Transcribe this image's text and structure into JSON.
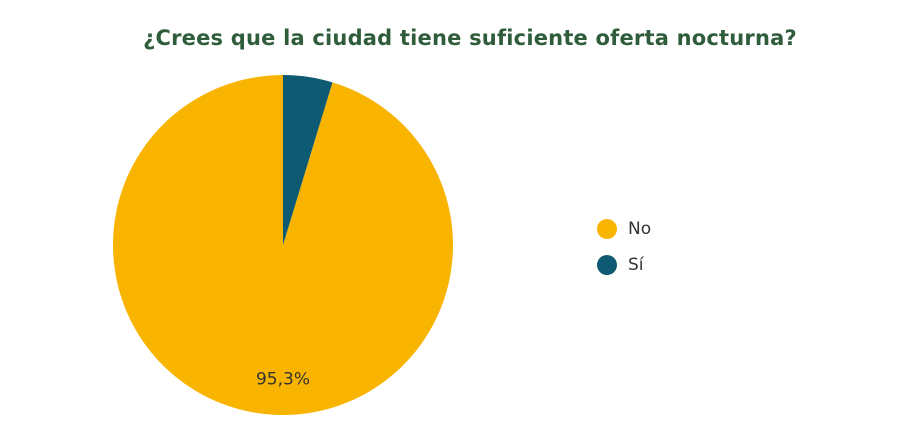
{
  "chart_data": {
    "type": "pie",
    "title": "¿Crees que la ciudad tiene suficiente oferta nocturna?",
    "categories": [
      "No",
      "Sí"
    ],
    "values": [
      95.3,
      4.7
    ],
    "colors": [
      "#f9b400",
      "#0f5a73"
    ],
    "data_labels": [
      "95,3%",
      ""
    ],
    "legend": {
      "position": "right",
      "items": [
        {
          "label": "No",
          "color": "#f9b400"
        },
        {
          "label": "Sí",
          "color": "#0f5a73"
        }
      ]
    }
  }
}
